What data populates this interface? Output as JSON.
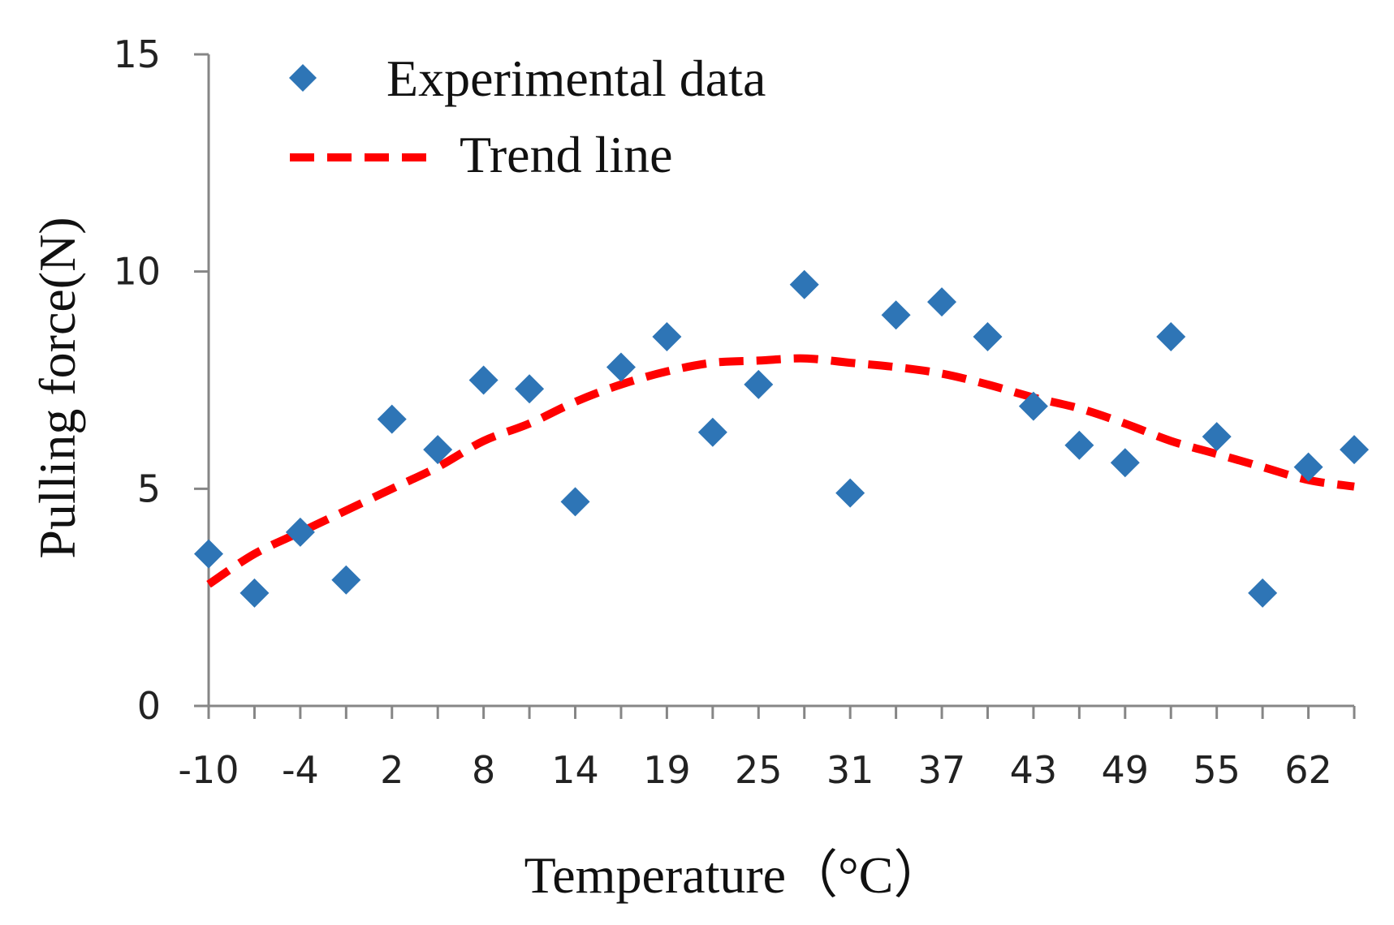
{
  "chart_data": {
    "type": "scatter",
    "title": "",
    "xlabel": "Temperature（°C）",
    "ylabel": "Pulling  force(N)",
    "x_tick_labels": [
      "-10",
      "-4",
      "2",
      "8",
      "14",
      "19",
      "25",
      "31",
      "37",
      "43",
      "49",
      "55",
      "62"
    ],
    "y_tick_labels": [
      "0",
      "5",
      "10",
      "15"
    ],
    "ylim": [
      0,
      15
    ],
    "grid": false,
    "legend_position": "top-left",
    "series": [
      {
        "name": "Experimental data",
        "kind": "scatter",
        "marker": "diamond",
        "color": "#2E75B6",
        "values": [
          3.5,
          2.6,
          4.0,
          2.9,
          6.6,
          5.9,
          7.5,
          7.3,
          4.7,
          7.8,
          8.5,
          6.3,
          7.4,
          9.7,
          4.9,
          9.0,
          9.3,
          8.5,
          6.9,
          6.0,
          5.6,
          8.5,
          6.2,
          2.6,
          5.5,
          5.9
        ]
      },
      {
        "name": "Trend line",
        "kind": "line",
        "style": "dashed",
        "color": "#FF0000",
        "values": [
          2.8,
          3.5,
          4.0,
          4.5,
          5.0,
          5.5,
          6.1,
          6.5,
          7.0,
          7.4,
          7.7,
          7.9,
          7.95,
          8.0,
          7.9,
          7.8,
          7.65,
          7.4,
          7.1,
          6.85,
          6.5,
          6.1,
          5.8,
          5.5,
          5.2,
          5.05
        ]
      }
    ]
  }
}
